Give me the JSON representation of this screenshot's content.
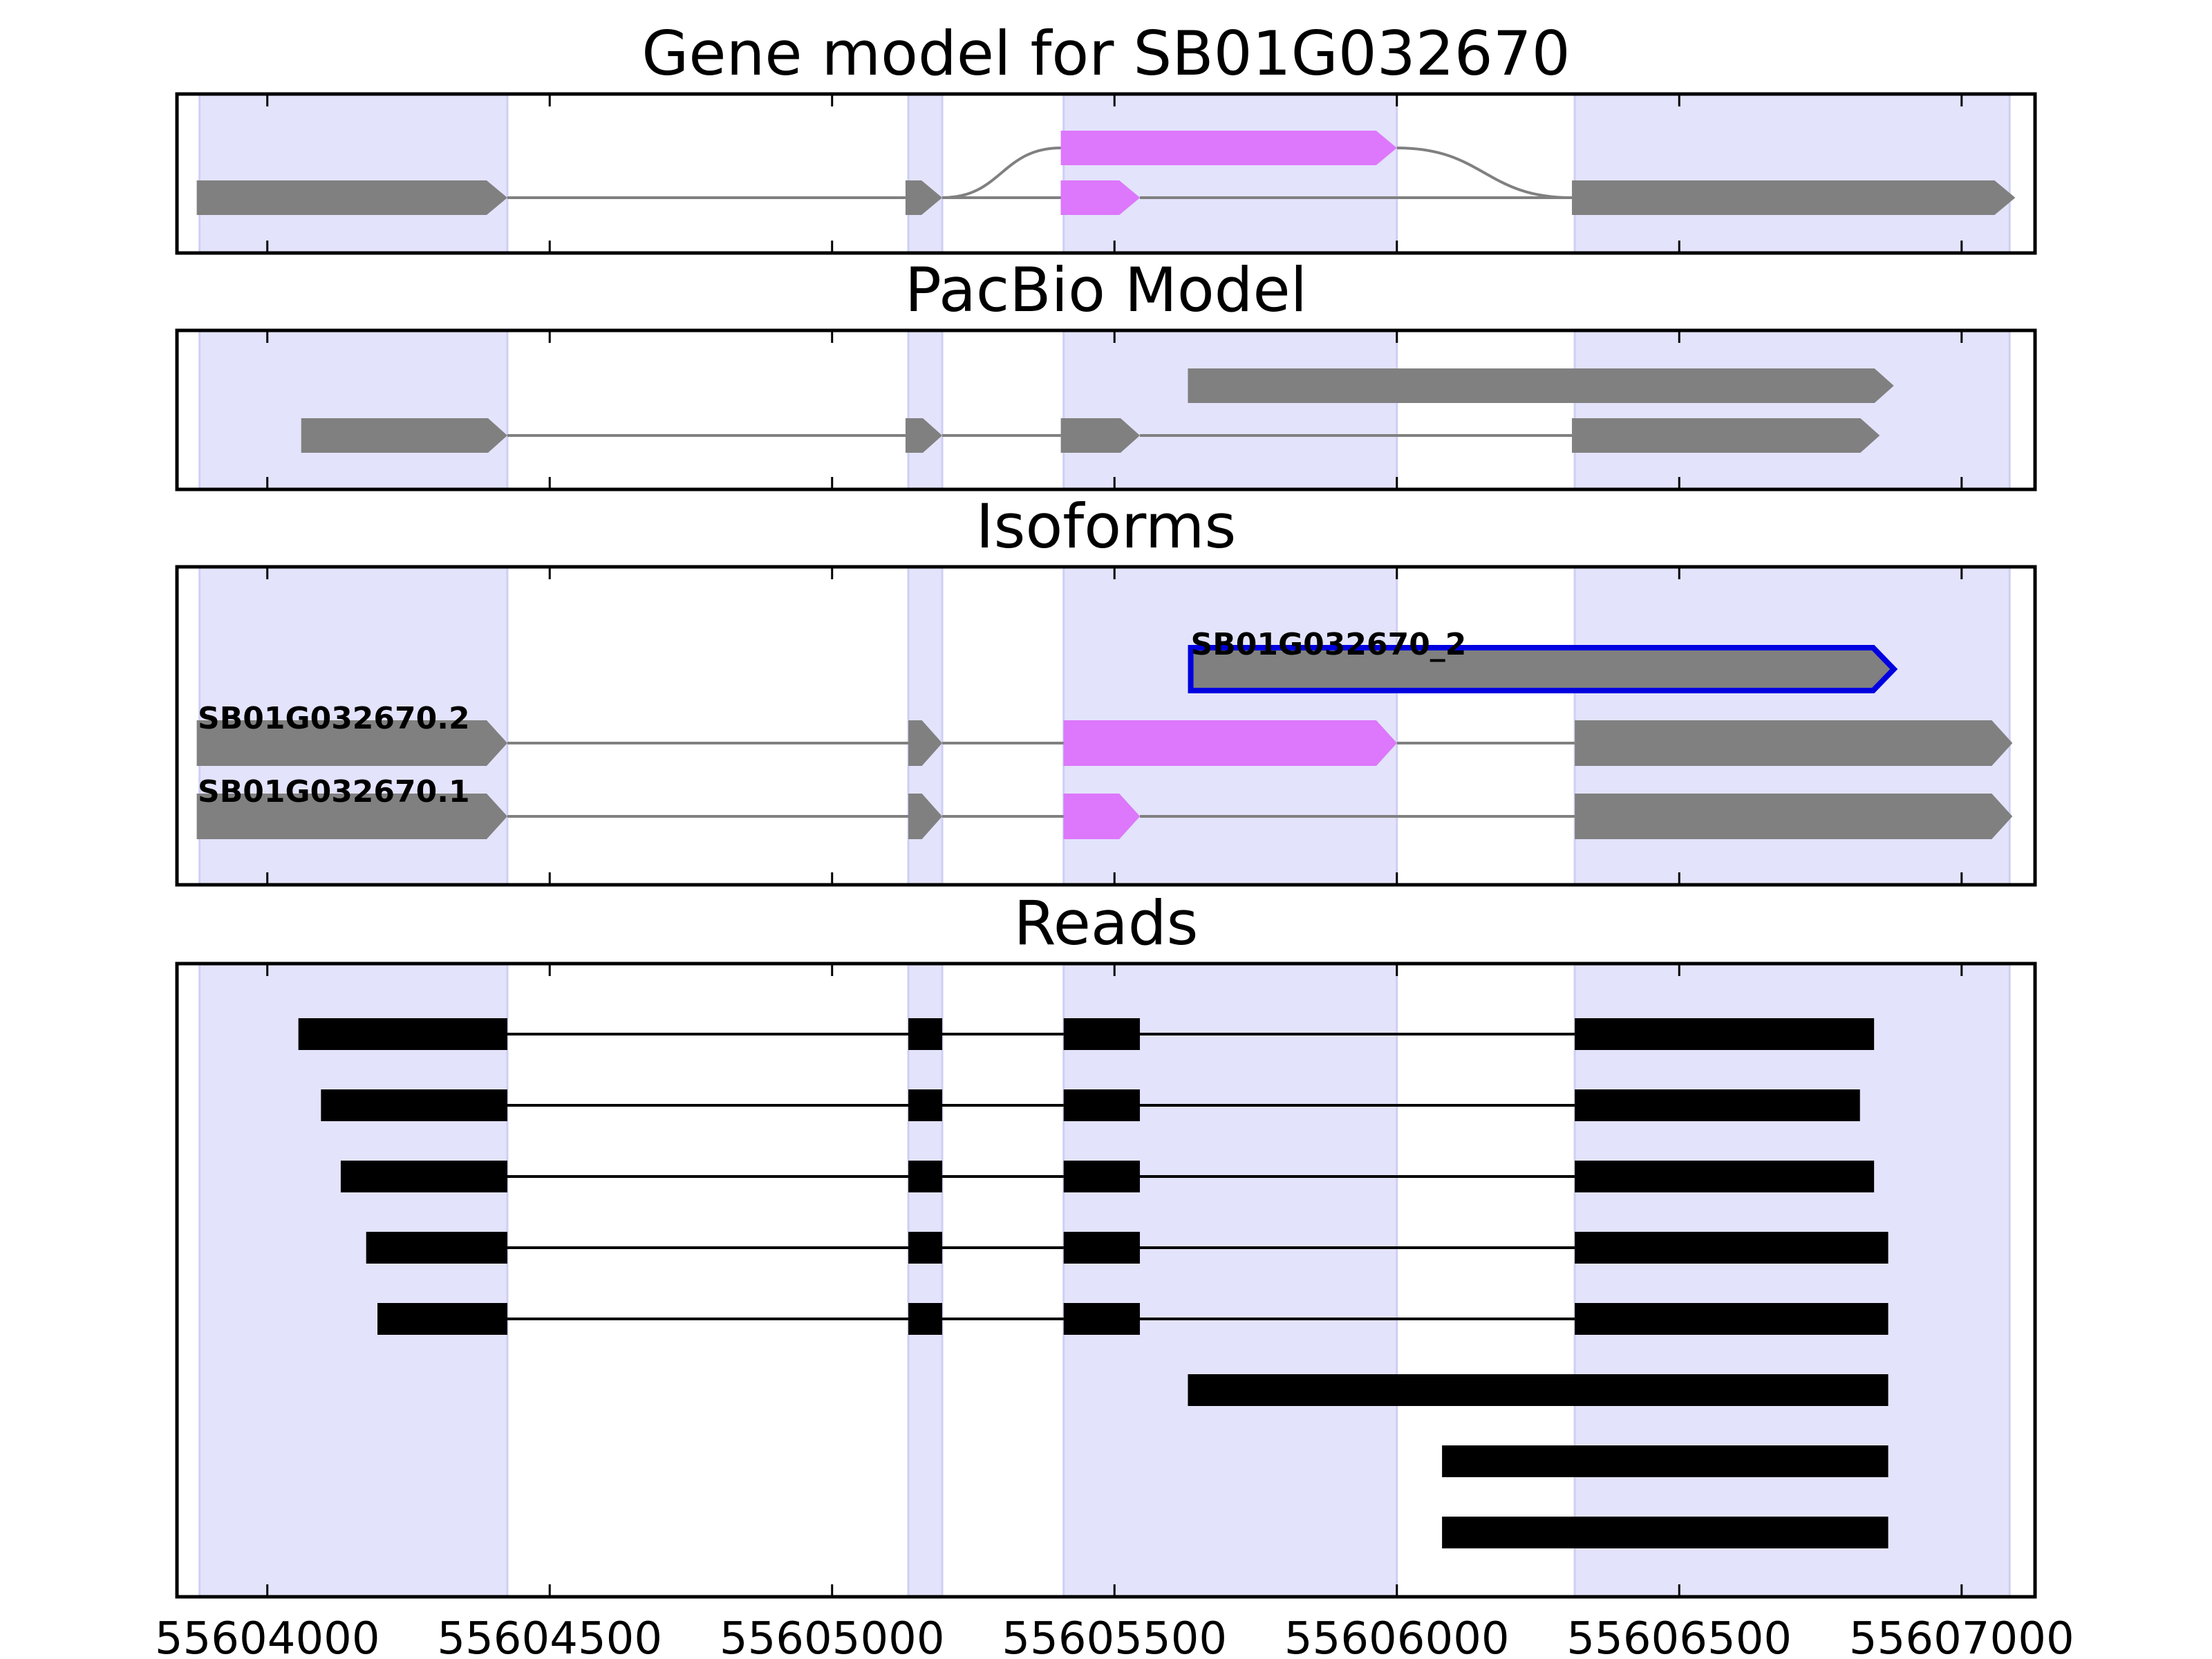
{
  "panels": [
    {
      "id": "gene",
      "title": "Gene model for SB01G032670"
    },
    {
      "id": "pacbio",
      "title": "PacBio Model"
    },
    {
      "id": "isoforms",
      "title": "Isoforms"
    },
    {
      "id": "reads",
      "title": "Reads"
    }
  ],
  "x_ticks": [
    55604000,
    55604500,
    55605000,
    55605500,
    55606000,
    55606500,
    55607000
  ],
  "x_range": [
    55603840,
    55607130
  ],
  "colors": {
    "shade": "#e3e3fc",
    "shade_edge": "#cfcff4",
    "exon": "#808080",
    "cds": "#dd77fb",
    "intron": "#808080",
    "read": "#000000",
    "selected_outline": "#0000e0",
    "frame": "#000000"
  },
  "chart_data": {
    "type": "diagram",
    "shaded_regions": [
      [
        55603880,
        55604425
      ],
      [
        55605135,
        55605195
      ],
      [
        55605410,
        55606000
      ],
      [
        55606315,
        55607085
      ]
    ],
    "gene_model": {
      "transcripts": [
        {
          "exons": [
            [
              55603875,
              55604425
            ],
            [
              55605130,
              55605195
            ],
            [
              55605405,
              55606000
            ],
            [
              55606310,
              55607095
            ]
          ],
          "cds": [
            [
              55605405,
              55606000
            ]
          ],
          "spliced_from": 55605195,
          "spliced_to": 55606310
        },
        {
          "exons": [
            [
              55603875,
              55604425
            ],
            [
              55605130,
              55605195
            ],
            [
              55605405,
              55605545
            ],
            [
              55606310,
              55607095
            ]
          ],
          "cds": [
            [
              55605405,
              55605545
            ]
          ]
        }
      ]
    },
    "pacbio_model": {
      "transcripts": [
        {
          "exons": [
            [
              55605630,
              55606880
            ]
          ]
        },
        {
          "exons": [
            [
              55604060,
              55604425
            ],
            [
              55605130,
              55605195
            ],
            [
              55605405,
              55605545
            ],
            [
              55606310,
              55606855
            ]
          ]
        }
      ]
    },
    "isoforms": [
      {
        "label": "SB01G032670_2",
        "selected": true,
        "exons": [
          [
            55605635,
            55606880
          ]
        ]
      },
      {
        "label": "SB01G032670.2",
        "exons": [
          [
            55603875,
            55604425
          ],
          [
            55605135,
            55605195
          ],
          [
            55605410,
            55606000
          ],
          [
            55606315,
            55607090
          ]
        ],
        "cds": [
          [
            55605410,
            55606000
          ]
        ]
      },
      {
        "label": "SB01G032670.1",
        "exons": [
          [
            55603875,
            55604425
          ],
          [
            55605135,
            55605195
          ],
          [
            55605410,
            55605545
          ],
          [
            55606315,
            55607090
          ]
        ],
        "cds": [
          [
            55605410,
            55605545
          ]
        ]
      }
    ],
    "reads": [
      {
        "exons": [
          [
            55604055,
            55604425
          ],
          [
            55605135,
            55605195
          ],
          [
            55605410,
            55605545
          ],
          [
            55606315,
            55606845
          ]
        ]
      },
      {
        "exons": [
          [
            55604095,
            55604425
          ],
          [
            55605135,
            55605195
          ],
          [
            55605410,
            55605545
          ],
          [
            55606315,
            55606820
          ]
        ]
      },
      {
        "exons": [
          [
            55604130,
            55604425
          ],
          [
            55605135,
            55605195
          ],
          [
            55605410,
            55605545
          ],
          [
            55606315,
            55606845
          ]
        ]
      },
      {
        "exons": [
          [
            55604175,
            55604425
          ],
          [
            55605135,
            55605195
          ],
          [
            55605410,
            55605545
          ],
          [
            55606315,
            55606870
          ]
        ]
      },
      {
        "exons": [
          [
            55604195,
            55604425
          ],
          [
            55605135,
            55605195
          ],
          [
            55605410,
            55605545
          ],
          [
            55606315,
            55606870
          ]
        ]
      },
      {
        "exons": [
          [
            55605630,
            55606870
          ]
        ]
      },
      {
        "exons": [
          [
            55606080,
            55606870
          ]
        ]
      },
      {
        "exons": [
          [
            55606080,
            55606870
          ]
        ]
      }
    ]
  }
}
